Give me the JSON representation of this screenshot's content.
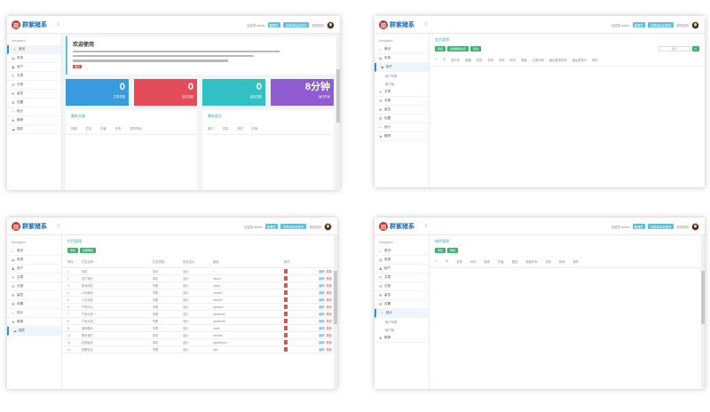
{
  "brand": {
    "logo_char": "田",
    "name": "群紫猪系"
  },
  "topbar": {
    "left_text": "欢迎您 admin",
    "badge_a": "管理员",
    "badge_b": "切换到后台首页",
    "link": "修改密码",
    "menu_glyph": "≡"
  },
  "sidebar": {
    "heading": "Navigation",
    "items": [
      {
        "icon": "⌂",
        "label": "首页"
      },
      {
        "icon": "▤",
        "label": "系统"
      },
      {
        "icon": "♟",
        "label": "用户"
      },
      {
        "icon": "✎",
        "label": "文章"
      },
      {
        "icon": "☰",
        "label": "分类"
      },
      {
        "icon": "✉",
        "label": "留言"
      },
      {
        "icon": "⚙",
        "label": "设置"
      },
      {
        "icon": "◔",
        "label": "统计"
      },
      {
        "icon": "★",
        "label": "推荐"
      },
      {
        "icon": "☁",
        "label": "插件"
      }
    ],
    "sub_a": "用户列表",
    "sub_b": "用户组"
  },
  "panel1": {
    "welcome_title": "欢迎使用",
    "welcome_tag": "提示",
    "stats": [
      {
        "value": "0",
        "label": "文章总数",
        "color": "#3a9ae0"
      },
      {
        "value": "0",
        "label": "会员总数",
        "color": "#e54c5a"
      },
      {
        "value": "0",
        "label": "留言总数",
        "color": "#33c0c4"
      },
      {
        "value": "8分钟",
        "label": "运行时间",
        "color": "#8e5bd1"
      }
    ],
    "box_left_title": "最新文章",
    "box_right_title": "最新留言",
    "left_cols": [
      "标题",
      "栏目",
      "作者",
      "状态",
      "发布时间"
    ],
    "right_cols": [
      "用户",
      "内容",
      "状态",
      "时间"
    ]
  },
  "panel2": {
    "title": "会员管理",
    "buttons": [
      "添加",
      "批量删除会员",
      "导出"
    ],
    "search_placeholder": "搜索",
    "search_btn": "Q",
    "cols": [
      "ID",
      "用户名",
      "邮箱",
      "性别",
      "手机",
      "状态",
      "积分",
      "等级",
      "注册时间",
      "最后登录时间",
      "最后登录IP",
      "操作"
    ]
  },
  "panel3": {
    "title": "栏目管理",
    "buttons": [
      "添加",
      "批量删除"
    ],
    "cols": [
      "排序",
      "栏目名称",
      "栏目类型",
      "前台显示",
      "链接",
      "操作"
    ],
    "rows": [
      {
        "num": "1",
        "name": "首页",
        "type": "单页",
        "show": "显示",
        "link": "/"
      },
      {
        "num": "2",
        "name": "关于我们",
        "type": "单页",
        "show": "显示",
        "link": "/about"
      },
      {
        "num": "3",
        "name": "新闻动态",
        "type": "列表",
        "show": "显示",
        "link": "/news"
      },
      {
        "num": "4",
        "name": "公司新闻",
        "type": "列表",
        "show": "显示",
        "link": "/news/1"
      },
      {
        "num": "5",
        "name": "行业动态",
        "type": "列表",
        "show": "显示",
        "link": "/news/2"
      },
      {
        "num": "6",
        "name": "产品中心",
        "type": "列表",
        "show": "显示",
        "link": "/product"
      },
      {
        "num": "7",
        "name": "产品分类一",
        "type": "列表",
        "show": "显示",
        "link": "/product/1"
      },
      {
        "num": "8",
        "name": "产品分类二",
        "type": "列表",
        "show": "显示",
        "link": "/product/2"
      },
      {
        "num": "9",
        "name": "案例展示",
        "type": "列表",
        "show": "显示",
        "link": "/case"
      },
      {
        "num": "10",
        "name": "联系我们",
        "type": "单页",
        "show": "显示",
        "link": "/contact"
      },
      {
        "num": "11",
        "name": "在线留言",
        "type": "单页",
        "show": "显示",
        "link": "/guestbook"
      },
      {
        "num": "12",
        "name": "招聘信息",
        "type": "列表",
        "show": "显示",
        "link": "/job"
      }
    ],
    "op_edit": "编辑",
    "op_del": "删除"
  },
  "panel4": {
    "title": "插件管理",
    "buttons": [
      "添加",
      "删除"
    ],
    "cols": [
      "ID",
      "名称",
      "标识",
      "版本",
      "作者",
      "描述",
      "安装时间",
      "状态",
      "排序",
      "操作"
    ]
  }
}
